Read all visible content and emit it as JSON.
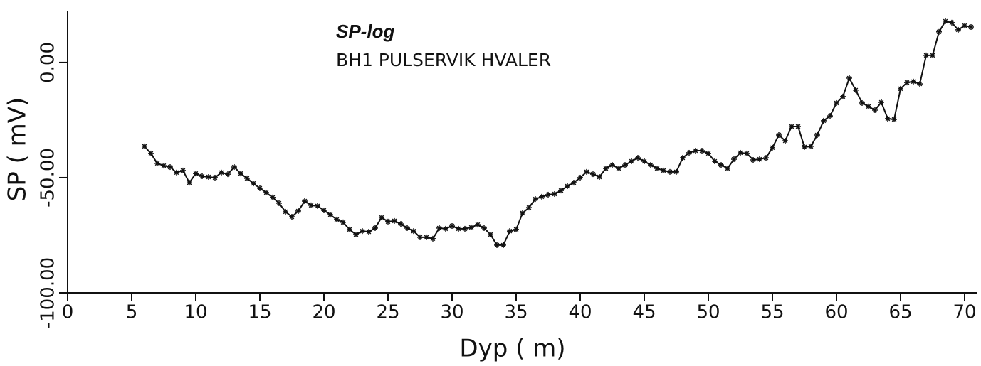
{
  "chart_data": {
    "type": "line",
    "title": "SP-log",
    "subtitle": "BH1 PULSERVIK HVALER",
    "x_label": "Dyp ( m)",
    "y_label": "SP ( mV)",
    "xlim": [
      0,
      71
    ],
    "ylim": [
      -100,
      22.5
    ],
    "xticks": [
      0,
      5,
      10,
      15,
      20,
      25,
      30,
      35,
      40,
      45,
      50,
      55,
      60,
      65,
      70
    ],
    "yticks": [
      {
        "value": -100,
        "label": "-100.00"
      },
      {
        "value": -50,
        "label": "-50.00"
      },
      {
        "value": 0,
        "label": "0.00"
      }
    ],
    "color": "#111111",
    "marker": "*",
    "x": [
      6,
      6.5,
      7,
      7.5,
      8,
      8.5,
      9,
      9.5,
      10,
      10.5,
      11,
      11.5,
      12,
      12.5,
      13,
      13.5,
      14,
      14.5,
      15,
      15.5,
      16,
      16.5,
      17,
      17.5,
      18,
      18.5,
      19,
      19.5,
      20,
      20.5,
      21,
      21.5,
      22,
      22.5,
      23,
      23.5,
      24,
      24.5,
      25,
      25.5,
      26,
      26.5,
      27,
      27.5,
      28,
      28.5,
      29,
      29.5,
      30,
      30.5,
      31,
      31.5,
      32,
      32.5,
      33,
      33.5,
      34,
      34.5,
      35,
      35.5,
      36,
      36.5,
      37,
      37.5,
      38,
      38.5,
      39,
      39.5,
      40,
      40.5,
      41,
      41.5,
      42,
      42.5,
      43,
      43.5,
      44,
      44.5,
      45,
      45.5,
      46,
      46.5,
      47,
      47.5,
      48,
      48.5,
      49,
      49.5,
      50,
      50.5,
      51,
      51.5,
      52,
      52.5,
      53,
      53.5,
      54,
      54.5,
      55,
      55.5,
      56,
      56.5,
      57,
      57.5,
      58,
      58.5,
      59,
      59.5,
      60,
      60.5,
      61,
      61.5,
      62,
      62.5,
      63,
      63.5,
      64,
      64.5,
      65,
      65.5,
      66,
      66.5,
      67,
      67.5,
      68,
      68.5,
      69,
      69.5,
      70,
      70.5
    ],
    "values": [
      -36.4,
      -39.5,
      -43.8,
      -44.8,
      -45.4,
      -47.8,
      -46.9,
      -52.2,
      -48.2,
      -49.4,
      -49.7,
      -50,
      -47.8,
      -48.5,
      -45.4,
      -48.2,
      -50.3,
      -52.5,
      -54.6,
      -56.5,
      -58.6,
      -61.1,
      -64.8,
      -67,
      -64.5,
      -60.2,
      -62,
      -62.3,
      -64.2,
      -66.1,
      -68.2,
      -69.4,
      -72.5,
      -74.7,
      -73.2,
      -73.5,
      -71.9,
      -67.3,
      -69.1,
      -68.8,
      -70.1,
      -71.9,
      -73.2,
      -75.9,
      -75.9,
      -76.5,
      -71.9,
      -72.2,
      -71,
      -72.2,
      -72.2,
      -71.6,
      -70.4,
      -71.9,
      -74.7,
      -79.3,
      -79.3,
      -73.2,
      -72.5,
      -65.4,
      -63,
      -59.3,
      -58.3,
      -57.4,
      -57.1,
      -55.6,
      -53.7,
      -52.2,
      -50,
      -47.5,
      -48.5,
      -49.7,
      -46,
      -44.5,
      -46,
      -44.5,
      -42.9,
      -41.4,
      -42.9,
      -44.5,
      -46,
      -46.9,
      -47.5,
      -47.5,
      -41.4,
      -39.2,
      -38.3,
      -38.3,
      -39.5,
      -42.9,
      -44.5,
      -46,
      -42,
      -39.2,
      -39.5,
      -42.3,
      -42,
      -41.4,
      -37,
      -31.5,
      -34,
      -27.8,
      -27.8,
      -36.7,
      -36.4,
      -31.5,
      -25.3,
      -23.2,
      -17.6,
      -14.8,
      -6.8,
      -12,
      -17.6,
      -19.1,
      -20.7,
      -17.3,
      -24.4,
      -24.7,
      -11.4,
      -8.7,
      -8.3,
      -9.3,
      3.1,
      3.1,
      13.3,
      17.9,
      17.3,
      14.2,
      16,
      15.4
    ]
  }
}
